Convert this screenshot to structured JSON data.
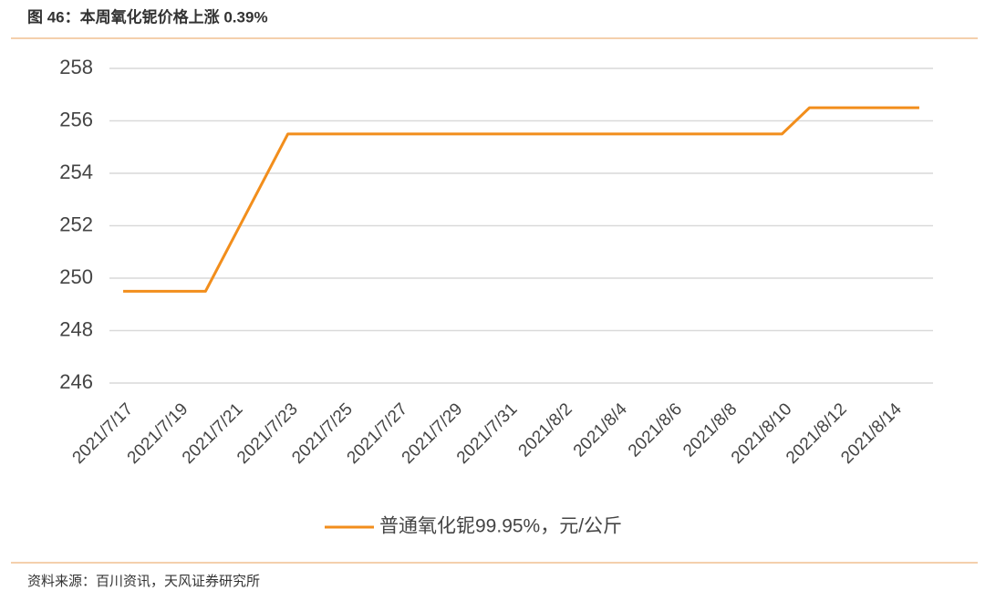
{
  "header": {
    "title": "图 46：本周氧化铌价格上涨 0.39%"
  },
  "chart_data": {
    "type": "line",
    "categories": [
      "2021/7/17",
      null,
      "2021/7/19",
      null,
      "2021/7/21",
      null,
      "2021/7/23",
      null,
      "2021/7/25",
      null,
      "2021/7/27",
      null,
      "2021/7/29",
      null,
      "2021/7/31",
      null,
      "2021/8/2",
      null,
      "2021/8/4",
      null,
      "2021/8/6",
      null,
      "2021/8/8",
      null,
      "2021/8/10",
      null,
      "2021/8/12",
      null,
      "2021/8/14",
      null
    ],
    "series": [
      {
        "name": "普通氧化铌99.95%，元/公斤",
        "color": "#f28e1c",
        "values": [
          249.5,
          249.5,
          249.5,
          249.5,
          251.5,
          253.5,
          255.5,
          255.5,
          255.5,
          255.5,
          255.5,
          255.5,
          255.5,
          255.5,
          255.5,
          255.5,
          255.5,
          255.5,
          255.5,
          255.5,
          255.5,
          255.5,
          255.5,
          255.5,
          255.5,
          256.5,
          256.5,
          256.5,
          256.5,
          256.5
        ]
      }
    ],
    "ylim": [
      246,
      258
    ],
    "yticks": [
      246,
      248,
      250,
      252,
      254,
      256,
      258
    ],
    "grid": true,
    "legend": "bottom"
  },
  "footer": {
    "source": "资料来源：百川资讯，天风证券研究所"
  }
}
